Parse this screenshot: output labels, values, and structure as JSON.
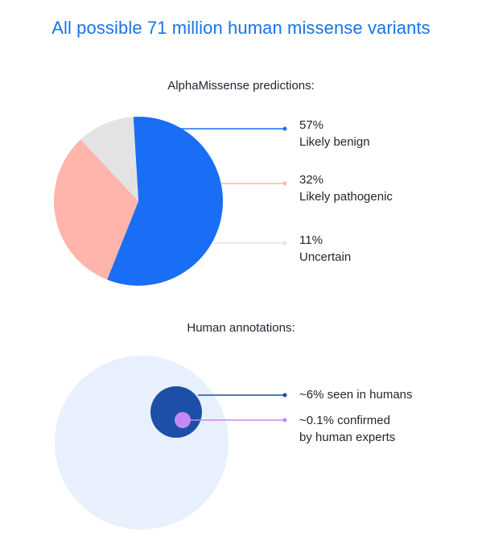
{
  "title": "All possible 71 million human missense variants",
  "chart_data": [
    {
      "type": "pie",
      "title": "AlphaMissense predictions:",
      "slices": [
        {
          "label": "Likely benign",
          "percent_text": "57%",
          "value": 57,
          "color": "#1a6ef5"
        },
        {
          "label": "Likely pathogenic",
          "percent_text": "32%",
          "value": 32,
          "color": "#ffb5ac"
        },
        {
          "label": "Uncertain",
          "percent_text": "11%",
          "value": 11,
          "color": "#e3e3e3"
        }
      ]
    },
    {
      "type": "nested-circles",
      "title": "Human annotations:",
      "total_label": "All possible 71 million human missense variants",
      "items": [
        {
          "text": "~6% seen in humans",
          "value": 6,
          "color": "#1d4fa8"
        },
        {
          "text": "~0.1% confirmed\nby human experts",
          "value": 0.1,
          "color": "#c489f2"
        }
      ],
      "background_color": "#e8f0fd"
    }
  ]
}
